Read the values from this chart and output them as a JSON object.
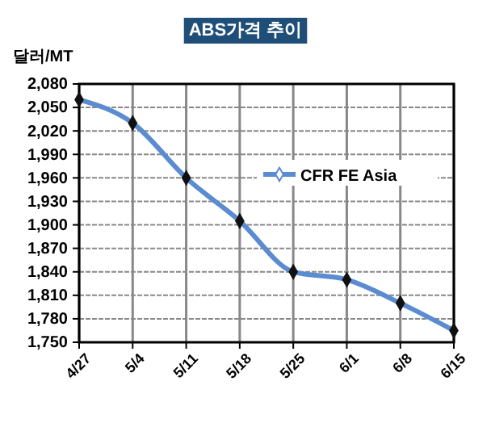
{
  "chart_data": {
    "type": "line",
    "title": "ABS가격 추이",
    "ylabel": "달러/MT",
    "categories": [
      "4/27",
      "5/4",
      "5/11",
      "5/18",
      "5/25",
      "6/1",
      "6/8",
      "6/15"
    ],
    "series": [
      {
        "name": "CFR FE Asia",
        "color": "#5b8bd0",
        "values": [
          2060,
          2030,
          1960,
          1905,
          1840,
          1830,
          1800,
          1765
        ]
      }
    ],
    "ylim": [
      1750,
      2080
    ],
    "yticks": [
      {
        "value": 1750,
        "label": "1,750"
      },
      {
        "value": 1780,
        "label": "1,780"
      },
      {
        "value": 1810,
        "label": "1,810"
      },
      {
        "value": 1840,
        "label": "1,840"
      },
      {
        "value": 1870,
        "label": "1,870"
      },
      {
        "value": 1900,
        "label": "1,900"
      },
      {
        "value": 1930,
        "label": "1,930"
      },
      {
        "value": 1960,
        "label": "1,960"
      },
      {
        "value": 1990,
        "label": "1,990"
      },
      {
        "value": 2020,
        "label": "2,020"
      },
      {
        "value": 2050,
        "label": "2,050"
      },
      {
        "value": 2080,
        "label": "2,080"
      }
    ],
    "grid": true,
    "legend": "right",
    "marker": "diamond",
    "line_style": "solid"
  }
}
